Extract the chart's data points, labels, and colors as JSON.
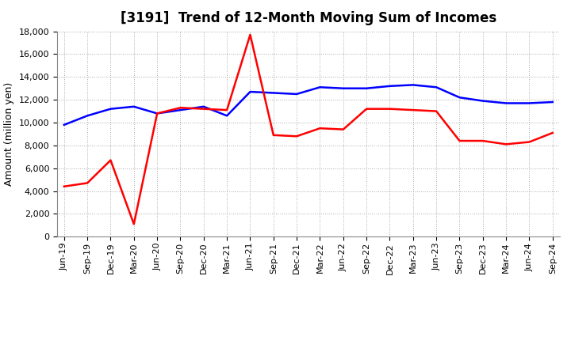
{
  "title": "[3191]  Trend of 12-Month Moving Sum of Incomes",
  "ylabel": "Amount (million yen)",
  "xlabels": [
    "Jun-19",
    "Sep-19",
    "Dec-19",
    "Mar-20",
    "Jun-20",
    "Sep-20",
    "Dec-20",
    "Mar-21",
    "Jun-21",
    "Sep-21",
    "Dec-21",
    "Mar-22",
    "Jun-22",
    "Sep-22",
    "Dec-22",
    "Mar-23",
    "Jun-23",
    "Sep-23",
    "Dec-23",
    "Mar-24",
    "Jun-24",
    "Sep-24"
  ],
  "ordinary_income": [
    9800,
    10600,
    11200,
    11400,
    10800,
    11100,
    11400,
    10600,
    12700,
    12600,
    12500,
    13100,
    13000,
    13000,
    13200,
    13300,
    13100,
    12200,
    11900,
    11700,
    11700,
    11800
  ],
  "net_income": [
    4400,
    4700,
    6700,
    1100,
    10800,
    11300,
    11200,
    11100,
    17700,
    8900,
    8800,
    9500,
    9400,
    11200,
    11200,
    11100,
    11000,
    8400,
    8400,
    8100,
    8300,
    9100
  ],
  "ordinary_income_color": "#0000ff",
  "net_income_color": "#ff0000",
  "ylim": [
    0,
    18000
  ],
  "yticks": [
    0,
    2000,
    4000,
    6000,
    8000,
    10000,
    12000,
    14000,
    16000,
    18000
  ],
  "background_color": "#ffffff",
  "grid_color": "#aaaaaa",
  "title_fontsize": 12,
  "axis_fontsize": 9,
  "tick_fontsize": 8
}
